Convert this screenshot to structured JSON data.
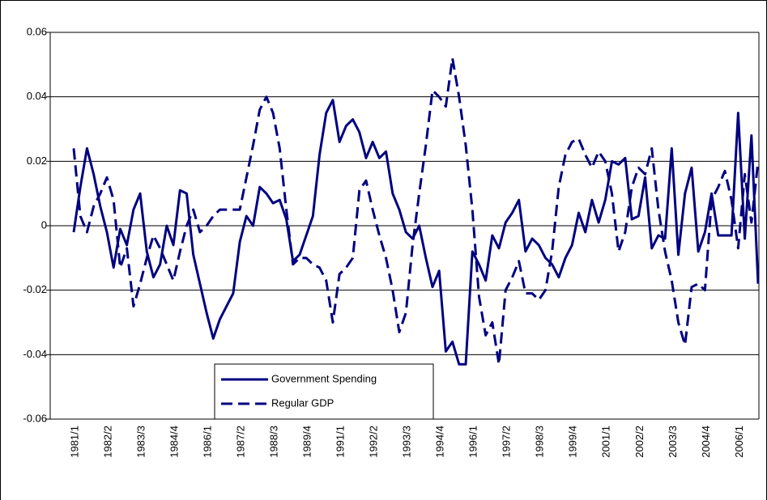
{
  "chart_data": {
    "type": "line",
    "categories": [
      "1981/1",
      null,
      null,
      null,
      null,
      "1982/2",
      null,
      null,
      null,
      null,
      "1983/3",
      null,
      null,
      null,
      null,
      "1984/4",
      null,
      null,
      null,
      null,
      "1986/1",
      null,
      null,
      null,
      null,
      "1987/2",
      null,
      null,
      null,
      null,
      "1988/3",
      null,
      null,
      null,
      null,
      "1989/4",
      null,
      null,
      null,
      null,
      "1991/1",
      null,
      null,
      null,
      null,
      "1992/2",
      null,
      null,
      null,
      null,
      "1993/3",
      null,
      null,
      null,
      null,
      "1994/4",
      null,
      null,
      null,
      null,
      "1996/1",
      null,
      null,
      null,
      null,
      "1997/2",
      null,
      null,
      null,
      null,
      "1998/3",
      null,
      null,
      null,
      null,
      "1999/4",
      null,
      null,
      null,
      null,
      "2001/1",
      null,
      null,
      null,
      null,
      "2002/2",
      null,
      null,
      null,
      null,
      "2003/3",
      null,
      null,
      null,
      null,
      "2004/4",
      null,
      null,
      null,
      null,
      "2006/1",
      null,
      null,
      null
    ],
    "series": [
      {
        "name": "Government Spending",
        "color": "#000080",
        "dashed": false,
        "values": [
          -0.002,
          0.012,
          0.024,
          0.016,
          0.006,
          -0.002,
          -0.013,
          -0.001,
          -0.006,
          0.005,
          0.01,
          -0.008,
          -0.016,
          -0.012,
          0.0,
          -0.006,
          0.011,
          0.01,
          -0.009,
          -0.018,
          -0.027,
          -0.035,
          -0.029,
          -0.025,
          -0.021,
          -0.005,
          0.003,
          0.0,
          0.012,
          0.01,
          0.007,
          0.008,
          0.002,
          -0.011,
          -0.009,
          -0.003,
          0.003,
          0.022,
          0.035,
          0.039,
          0.026,
          0.031,
          0.033,
          0.029,
          0.021,
          0.026,
          0.021,
          0.023,
          0.01,
          0.005,
          -0.002,
          -0.004,
          0.0,
          -0.01,
          -0.019,
          -0.014,
          -0.039,
          -0.036,
          -0.043,
          -0.043,
          -0.008,
          -0.012,
          -0.017,
          -0.003,
          -0.007,
          0.001,
          0.004,
          0.008,
          -0.008,
          -0.004,
          -0.006,
          -0.01,
          -0.012,
          -0.016,
          -0.01,
          -0.006,
          0.004,
          -0.002,
          0.008,
          0.001,
          0.008,
          0.02,
          0.019,
          0.021,
          0.002,
          0.003,
          0.015,
          -0.007,
          -0.003,
          -0.004,
          0.024,
          -0.009,
          0.01,
          0.018,
          -0.008,
          -0.002,
          0.01,
          -0.003,
          -0.003,
          -0.003,
          0.035,
          -0.004,
          0.028,
          -0.018
        ]
      },
      {
        "name": "Regular GDP",
        "color": "#000080",
        "dashed": true,
        "values": [
          0.024,
          0.003,
          -0.002,
          0.006,
          0.01,
          0.015,
          0.008,
          -0.013,
          -0.007,
          -0.025,
          -0.018,
          -0.01,
          -0.003,
          -0.007,
          -0.012,
          -0.017,
          -0.008,
          0.0,
          0.005,
          -0.002,
          0.0,
          0.003,
          0.005,
          0.005,
          0.005,
          0.005,
          0.015,
          0.025,
          0.036,
          0.04,
          0.035,
          0.024,
          0.005,
          -0.012,
          -0.01,
          -0.01,
          -0.012,
          -0.013,
          -0.017,
          -0.03,
          -0.015,
          -0.013,
          -0.01,
          0.011,
          0.014,
          0.005,
          -0.003,
          -0.01,
          -0.02,
          -0.033,
          -0.027,
          -0.006,
          0.01,
          0.025,
          0.042,
          0.04,
          0.037,
          0.052,
          0.04,
          0.025,
          0.005,
          -0.022,
          -0.034,
          -0.03,
          -0.043,
          -0.02,
          -0.016,
          -0.011,
          -0.021,
          -0.021,
          -0.023,
          -0.02,
          -0.008,
          0.012,
          0.022,
          0.026,
          0.027,
          0.022,
          0.018,
          0.023,
          0.02,
          0.01,
          -0.008,
          -0.002,
          0.012,
          0.018,
          0.016,
          0.024,
          0.005,
          -0.008,
          -0.017,
          -0.03,
          -0.037,
          -0.019,
          -0.018,
          -0.02,
          0.008,
          0.012,
          0.017,
          0.008,
          -0.007,
          0.016,
          0.001,
          0.02
        ]
      }
    ],
    "ylim": [
      -0.06,
      0.06
    ],
    "yticks": [
      -0.06,
      -0.04,
      -0.02,
      0,
      0.02,
      0.04,
      0.06
    ],
    "grid": true
  }
}
